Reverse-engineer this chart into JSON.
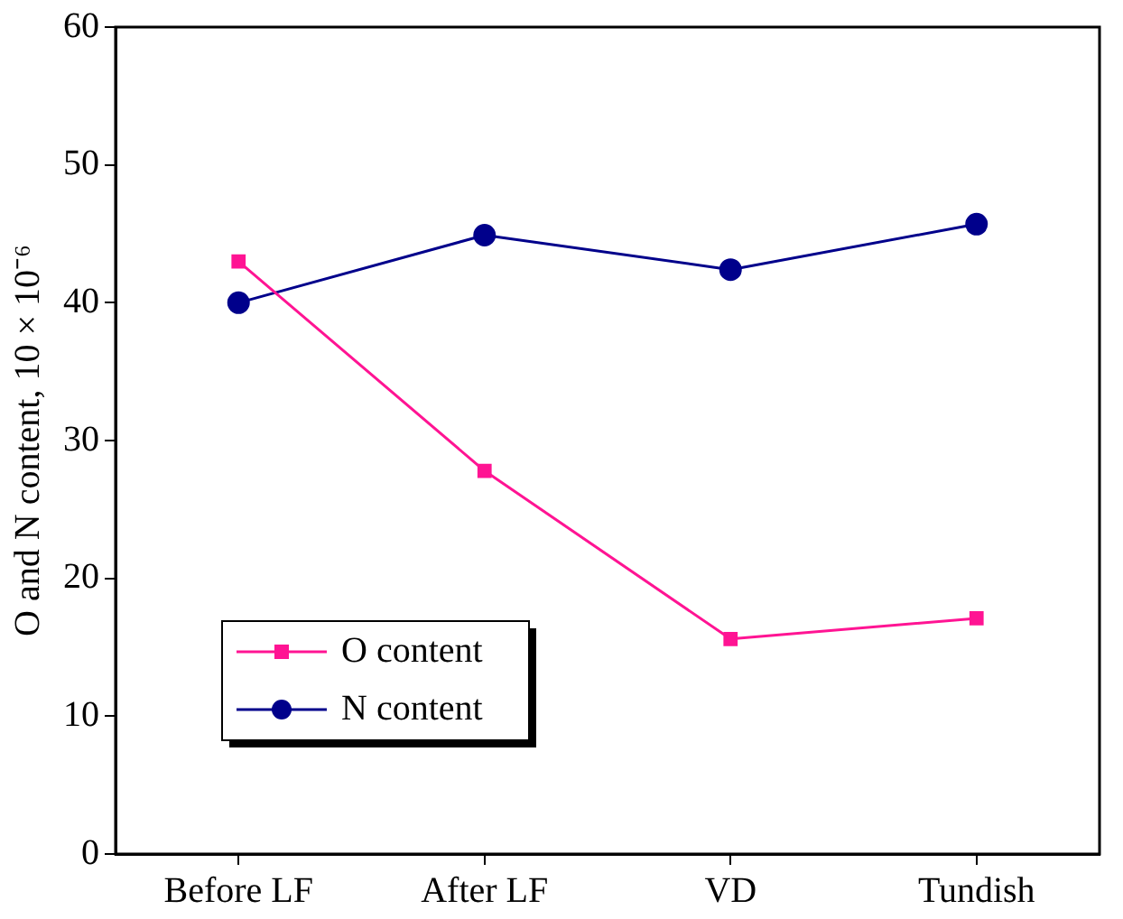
{
  "chart_data": {
    "type": "line",
    "ylabel": "O and N content, 10 × 10⁻⁶",
    "categories": [
      "Before LF",
      "After LF",
      "VD",
      "Tundish"
    ],
    "series": [
      {
        "name": "O content",
        "color": "#ff1493",
        "values": [
          43,
          27.8,
          15.6,
          17.1
        ],
        "marker": "square"
      },
      {
        "name": "N content",
        "color": "#00008b",
        "values": [
          40,
          44.9,
          42.4,
          45.7
        ],
        "marker": "circle"
      }
    ],
    "ylim": [
      0,
      60
    ],
    "yticks": [
      0,
      10,
      20,
      30,
      40,
      50,
      60
    ],
    "grid": false,
    "legend": "bottom left",
    "line_style": "solid"
  }
}
